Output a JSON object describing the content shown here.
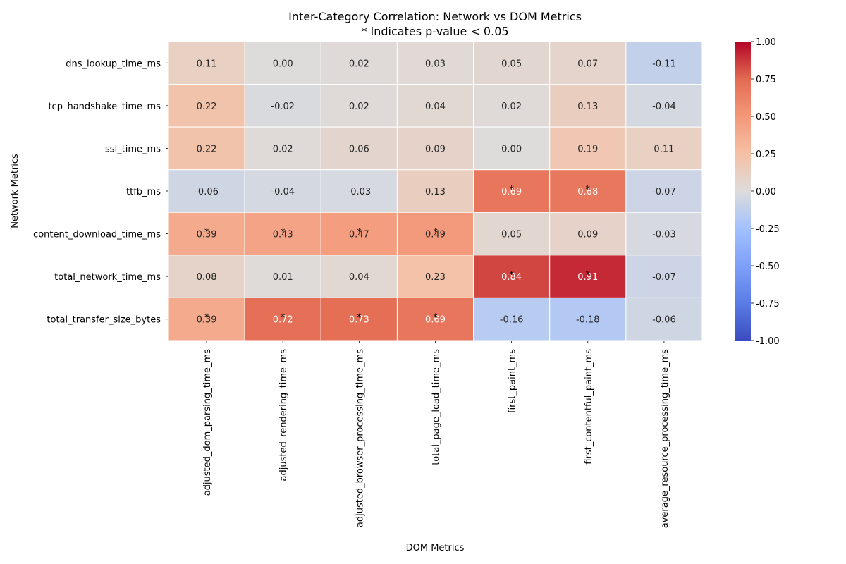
{
  "chart_data": {
    "type": "heatmap",
    "title": "Inter-Category Correlation: Network vs DOM Metrics",
    "subtitle": "* Indicates p-value < 0.05",
    "xlabel": "DOM Metrics",
    "ylabel": "Network Metrics",
    "columns": [
      "adjusted_dom_parsing_time_ms",
      "adjusted_rendering_time_ms",
      "adjusted_browser_processing_time_ms",
      "total_page_load_time_ms",
      "first_paint_ms",
      "first_contentful_paint_ms",
      "average_resource_processing_time_ms"
    ],
    "rows": [
      "dns_lookup_time_ms",
      "tcp_handshake_time_ms",
      "ssl_time_ms",
      "ttfb_ms",
      "content_download_time_ms",
      "total_network_time_ms",
      "total_transfer_size_bytes"
    ],
    "values": [
      [
        0.11,
        0.0,
        0.02,
        0.03,
        0.05,
        0.07,
        -0.11
      ],
      [
        0.22,
        -0.02,
        0.02,
        0.04,
        0.02,
        0.13,
        -0.04
      ],
      [
        0.22,
        0.02,
        0.06,
        0.09,
        0.0,
        0.19,
        0.11
      ],
      [
        -0.06,
        -0.04,
        -0.03,
        0.13,
        0.69,
        0.68,
        -0.07
      ],
      [
        0.39,
        0.43,
        0.47,
        0.49,
        0.05,
        0.09,
        -0.03
      ],
      [
        0.08,
        0.01,
        0.04,
        0.23,
        0.84,
        0.91,
        -0.07
      ],
      [
        0.39,
        0.72,
        0.73,
        0.69,
        -0.16,
        -0.18,
        -0.06
      ]
    ],
    "significant": [
      [
        false,
        false,
        false,
        false,
        false,
        false,
        false
      ],
      [
        false,
        false,
        false,
        false,
        false,
        false,
        false
      ],
      [
        false,
        false,
        false,
        false,
        false,
        false,
        false
      ],
      [
        false,
        false,
        false,
        false,
        true,
        true,
        false
      ],
      [
        true,
        true,
        true,
        true,
        false,
        false,
        false
      ],
      [
        false,
        false,
        false,
        false,
        true,
        true,
        false
      ],
      [
        true,
        true,
        true,
        true,
        false,
        false,
        false
      ]
    ],
    "significance_marker": "*",
    "colorbar": {
      "colormap": "coolwarm",
      "range": [
        -1.0,
        1.0
      ],
      "ticks": [
        "1.00",
        "0.75",
        "0.50",
        "0.25",
        "0.00",
        "-0.25",
        "-0.50",
        "-0.75",
        "-1.00"
      ]
    }
  }
}
